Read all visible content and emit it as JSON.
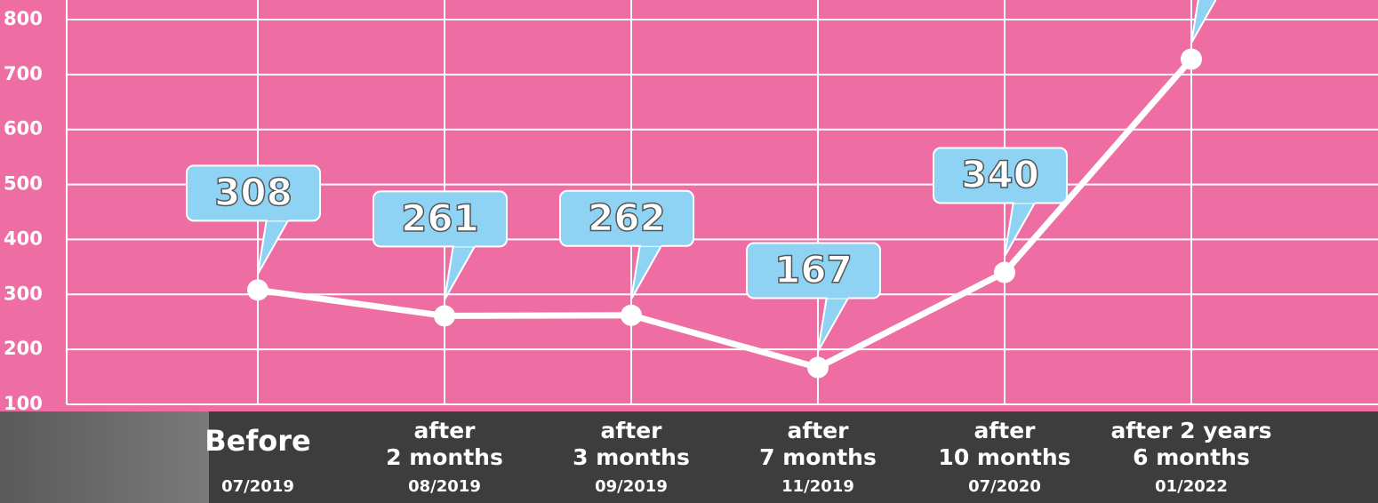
{
  "chart_data": {
    "type": "line",
    "categories": [
      "Before",
      "after\n2 months",
      "after\n3 months",
      "after\n7 months",
      "after\n10 months",
      "after 2 years\n6 months"
    ],
    "dates": [
      "07/2019",
      "08/2019",
      "09/2019",
      "11/2019",
      "07/2020",
      "01/2022"
    ],
    "values": [
      308,
      261,
      262,
      167,
      340,
      728
    ],
    "value_labels": [
      "308",
      "261",
      "262",
      "167",
      "340",
      null
    ],
    "color": "#ffffff",
    "ylim": [
      100,
      800
    ],
    "yticks": [
      100,
      200,
      300,
      400,
      500,
      600,
      700,
      800
    ],
    "grid": true
  }
}
